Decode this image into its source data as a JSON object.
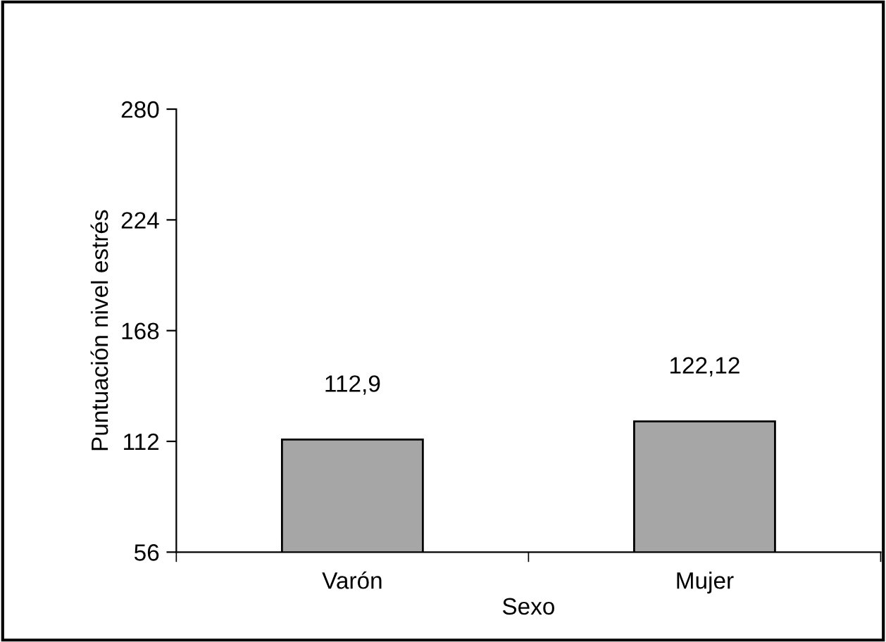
{
  "chart_data": {
    "type": "bar",
    "xlabel": "Sexo",
    "ylabel": "Puntuación nivel estrés",
    "categories": [
      "Varón",
      "Mujer"
    ],
    "values": [
      112.9,
      122.12
    ],
    "value_labels": [
      "112,9",
      "122,12"
    ],
    "color": "#a6a6a6",
    "ylim": [
      56,
      280
    ],
    "yticks": [
      56,
      112,
      168,
      224,
      280
    ],
    "grid": false
  }
}
